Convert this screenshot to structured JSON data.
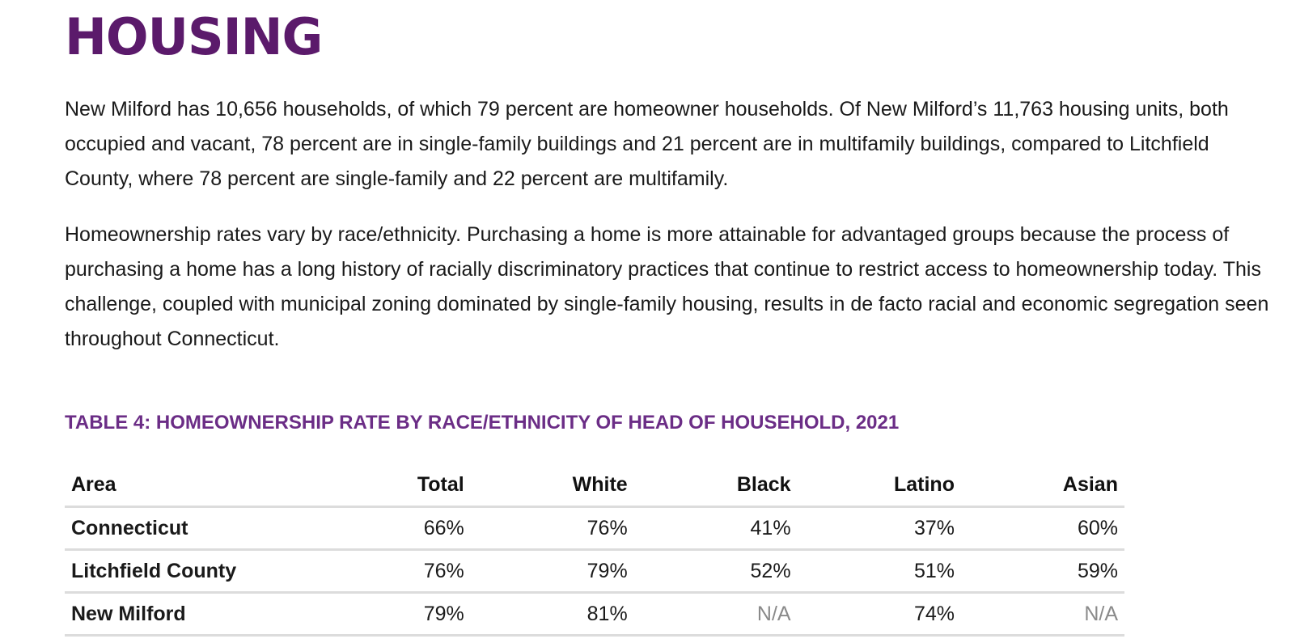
{
  "heading": "HOUSING",
  "paragraphs": [
    "New Milford has 10,656 households, of which 79 percent are homeowner households. Of New Milford’s 11,763 housing units, both occupied and vacant, 78 percent are in single-family buildings and 21 percent are in multifamily buildings, compared to Litchfield County, where 78 percent are single-family and 22 percent are multifamily.",
    "Homeownership rates vary by race/ethnicity. Purchasing a home is more attainable for advantaged groups because the process of purchasing a home has a long history of racially discriminatory practices that continue to restrict access to homeownership today. This challenge, coupled with municipal zoning dominated by single-family housing, results in de facto racial and economic segregation seen throughout Connecticut."
  ],
  "table": {
    "title": "TABLE 4: HOMEOWNERSHIP RATE BY RACE/ETHNICITY OF HEAD OF HOUSEHOLD, 2021",
    "headers": [
      "Area",
      "Total",
      "White",
      "Black",
      "Latino",
      "Asian"
    ],
    "rows": [
      [
        "Connecticut",
        "66%",
        "76%",
        "41%",
        "37%",
        "60%"
      ],
      [
        "Litchfield County",
        "76%",
        "79%",
        "52%",
        "51%",
        "59%"
      ],
      [
        "New Milford",
        "79%",
        "81%",
        "N/A",
        "74%",
        "N/A"
      ]
    ]
  },
  "colors": {
    "heading": "#5b1a6b",
    "table_title": "#6b2d86",
    "rule": "#dcdcdc",
    "na_text": "#8a8a8a"
  }
}
